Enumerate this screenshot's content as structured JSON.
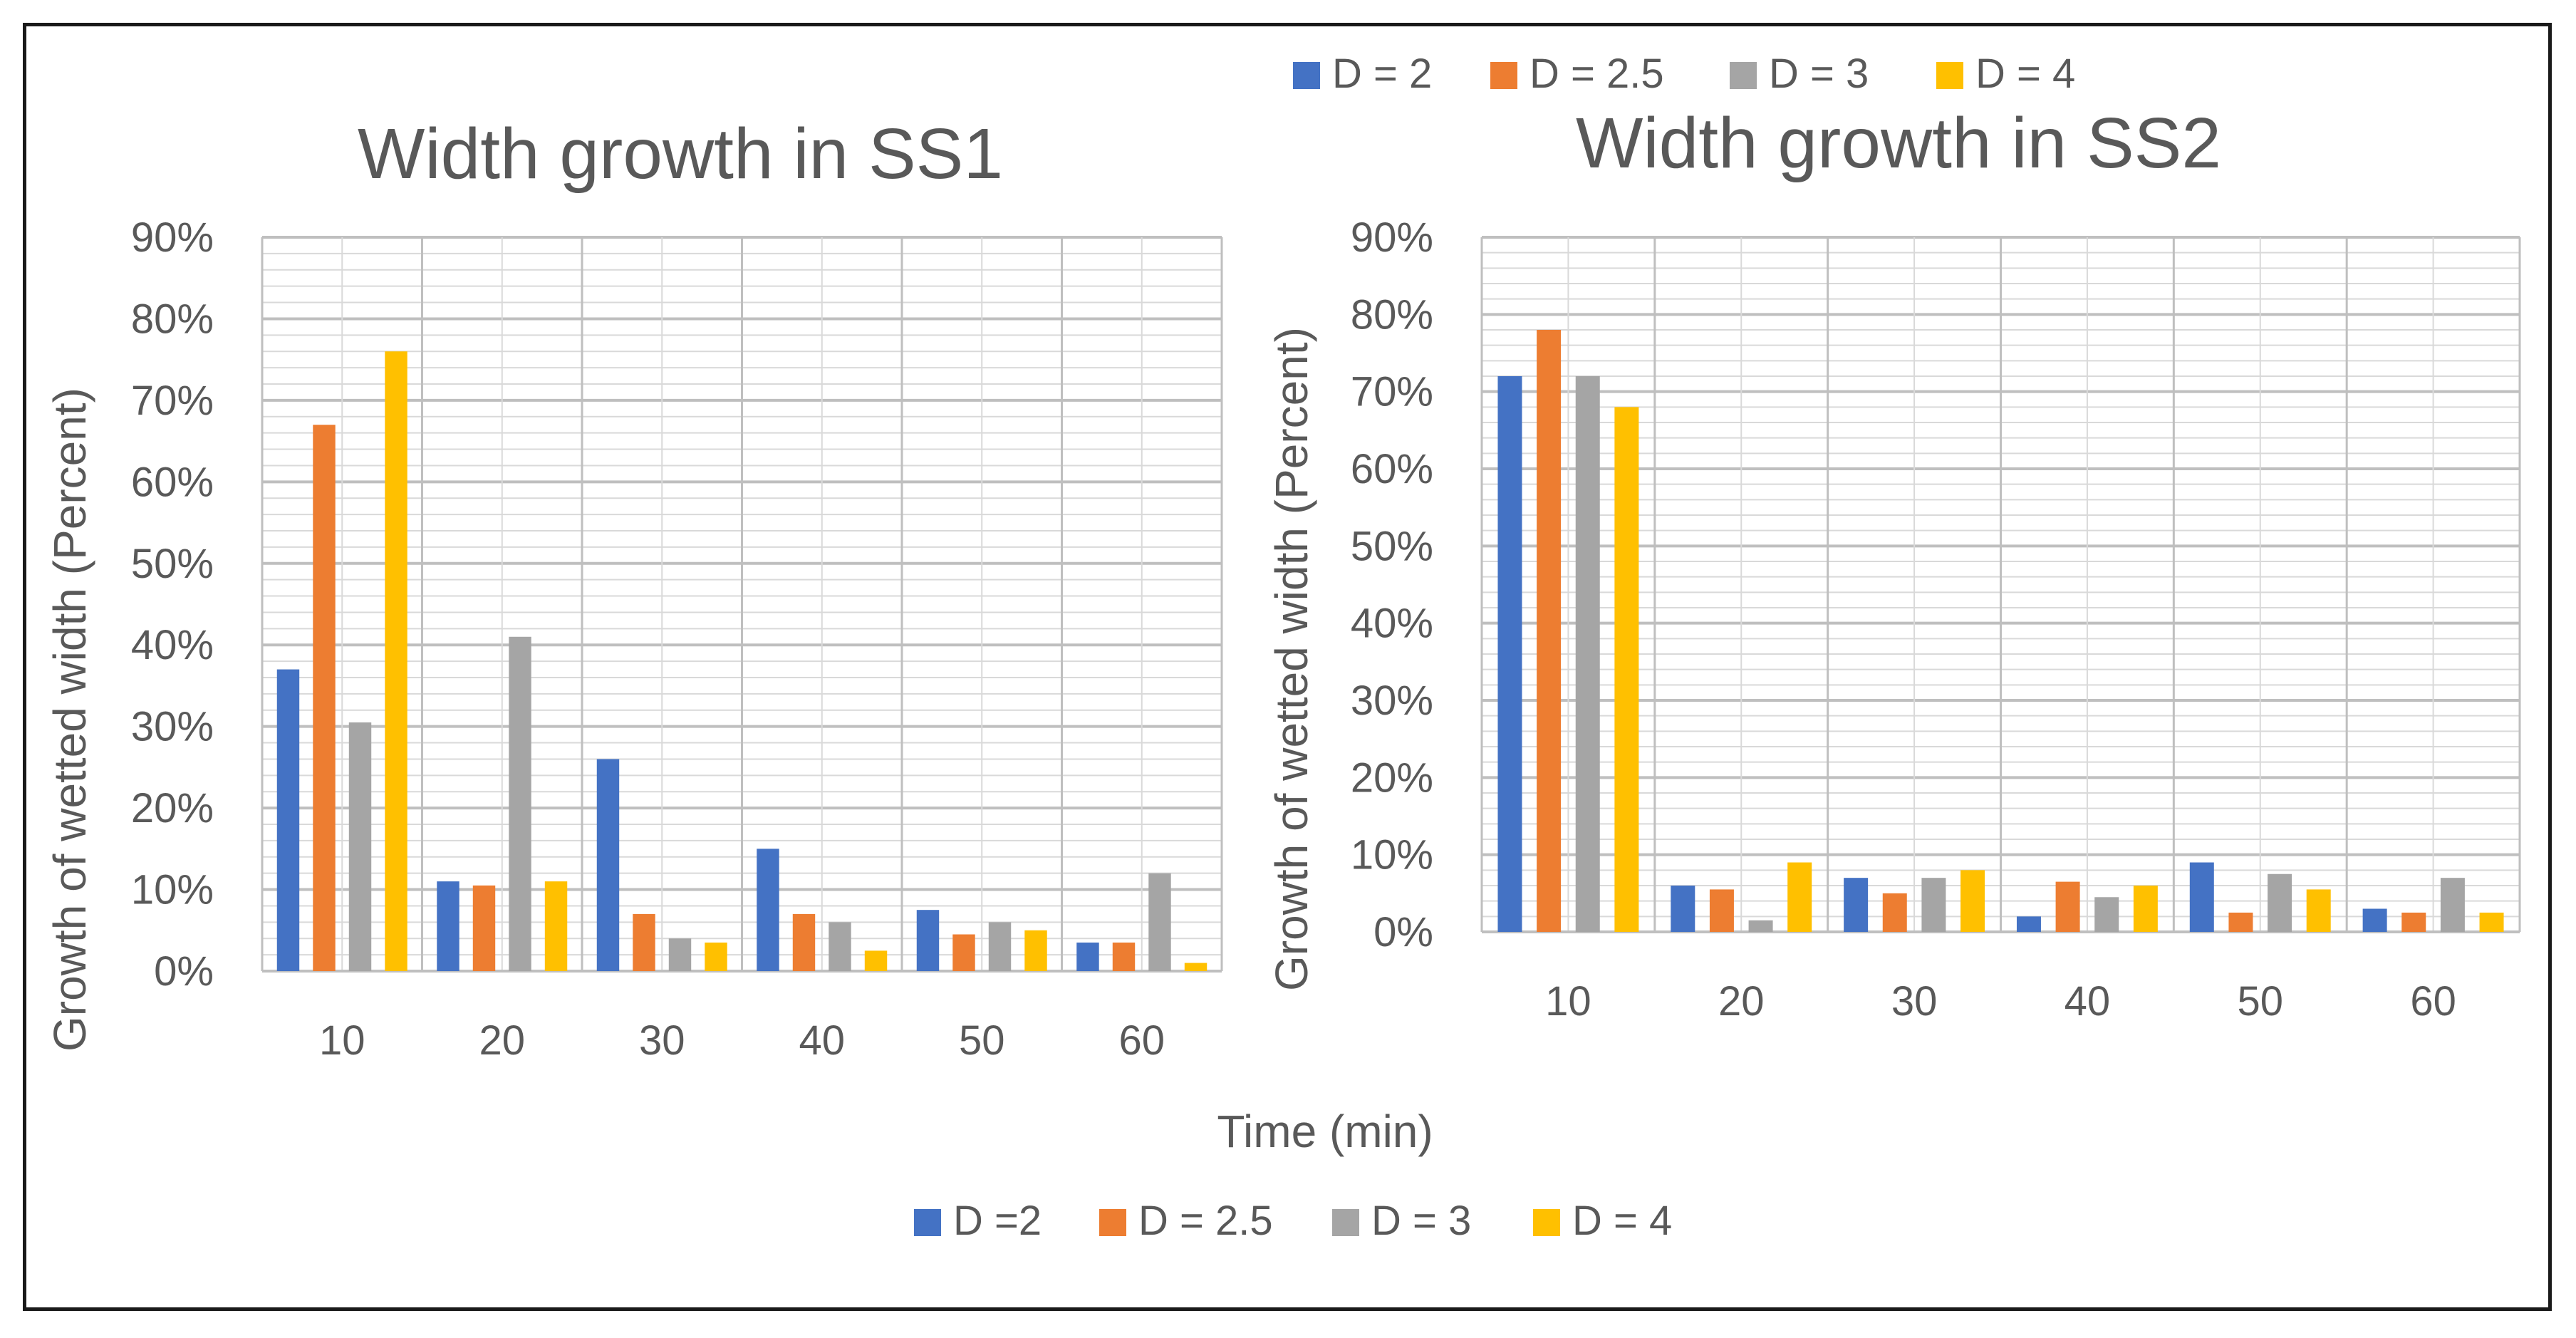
{
  "colors": {
    "series": [
      "#4472C4",
      "#ED7D31",
      "#A5A5A5",
      "#FFC000"
    ],
    "gridline": "#d9d9d9",
    "axis": "#bfbfbf",
    "text": "#595959",
    "frame": "#1a1a1a"
  },
  "shared": {
    "xlabel": "Time (min)",
    "bottom_legend": [
      "D =2",
      "D = 2.5",
      "D = 3",
      "D = 4"
    ],
    "top_legend": [
      "D = 2",
      "D = 2.5",
      "D = 3",
      "D = 4"
    ]
  },
  "chart_data": [
    {
      "type": "bar",
      "title": "Width growth in SS1",
      "ylabel": "Growth of wetted width (Percent)",
      "xlabel": "Time (min)",
      "categories": [
        "10",
        "20",
        "30",
        "40",
        "50",
        "60"
      ],
      "y_ticks": [
        "0%",
        "10%",
        "20%",
        "30%",
        "40%",
        "50%",
        "60%",
        "70%",
        "80%",
        "90%"
      ],
      "ylim": [
        0,
        90
      ],
      "grid": true,
      "series": [
        {
          "name": "D =2",
          "values": [
            37,
            11,
            26,
            15,
            7.5,
            3.5
          ]
        },
        {
          "name": "D = 2.5",
          "values": [
            67,
            10.5,
            7,
            7,
            4.5,
            3.5
          ]
        },
        {
          "name": "D = 3",
          "values": [
            30.5,
            41,
            4,
            6,
            6,
            12
          ]
        },
        {
          "name": "D = 4",
          "values": [
            76,
            11,
            3.5,
            2.5,
            5,
            1
          ]
        }
      ]
    },
    {
      "type": "bar",
      "title": "Width growth in SS2",
      "ylabel": "Growth of wetted width (Percent)",
      "xlabel": "Time (min)",
      "categories": [
        "10",
        "20",
        "30",
        "40",
        "50",
        "60"
      ],
      "y_ticks": [
        "0%",
        "10%",
        "20%",
        "30%",
        "40%",
        "50%",
        "60%",
        "70%",
        "80%",
        "90%"
      ],
      "ylim": [
        0,
        90
      ],
      "grid": true,
      "series": [
        {
          "name": "D = 2",
          "values": [
            72,
            6,
            7,
            2,
            9,
            3
          ]
        },
        {
          "name": "D = 2.5",
          "values": [
            78,
            5.5,
            5,
            6.5,
            2.5,
            2.5
          ]
        },
        {
          "name": "D = 3",
          "values": [
            72,
            1.5,
            7,
            4.5,
            7.5,
            7
          ]
        },
        {
          "name": "D = 4",
          "values": [
            68,
            9,
            8,
            6,
            5.5,
            2.5
          ]
        }
      ]
    }
  ]
}
